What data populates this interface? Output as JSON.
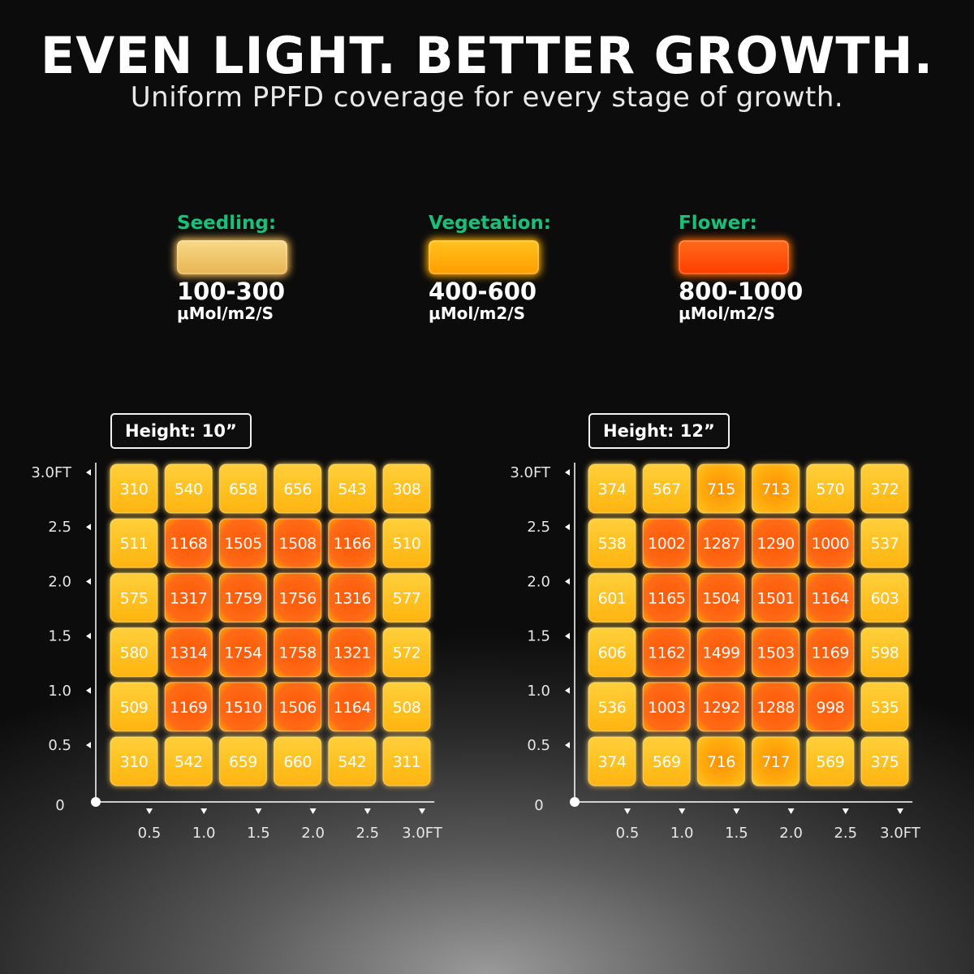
{
  "header": {
    "title": "EVEN LIGHT. BETTER GROWTH.",
    "subtitle": "Uniform PPFD coverage for every stage of growth."
  },
  "legend": [
    {
      "label": "Seedling:",
      "range": "100-300",
      "unit": "μMol/m2/S",
      "color_top": "#f7d98a",
      "color_bottom": "#e9b452",
      "glow": "#ffc65a"
    },
    {
      "label": "Vegetation:",
      "range": "400-600",
      "unit": "μMol/m2/S",
      "color_top": "#ffc21e",
      "color_bottom": "#ff9d00",
      "glow": "#ffb000"
    },
    {
      "label": "Flower:",
      "range": "800-1000",
      "unit": "μMol/m2/S",
      "color_top": "#ff6a1a",
      "color_bottom": "#ff3d00",
      "glow": "#ff6a00"
    }
  ],
  "colors": {
    "legend_label": "#19c07a",
    "cell_mid": "#ffc21e",
    "cell_high": "#ff5a10"
  },
  "chart_data": [
    {
      "type": "heatmap",
      "title": "Height: 10”",
      "xlabel": "",
      "ylabel": "",
      "x_ticks": [
        "0.5",
        "1.0",
        "1.5",
        "2.0",
        "2.5",
        "3.0FT"
      ],
      "y_ticks": [
        "3.0FT",
        "2.5",
        "2.0",
        "1.5",
        "1.0",
        "0.5"
      ],
      "origin_label": "0",
      "rows": [
        [
          310,
          540,
          658,
          656,
          543,
          308
        ],
        [
          511,
          1168,
          1505,
          1508,
          1166,
          510
        ],
        [
          575,
          1317,
          1759,
          1756,
          1316,
          577
        ],
        [
          580,
          1314,
          1754,
          1758,
          1321,
          572
        ],
        [
          509,
          1169,
          1510,
          1506,
          1164,
          508
        ],
        [
          310,
          542,
          659,
          660,
          542,
          311
        ]
      ]
    },
    {
      "type": "heatmap",
      "title": "Height: 12”",
      "xlabel": "",
      "ylabel": "",
      "x_ticks": [
        "0.5",
        "1.0",
        "1.5",
        "2.0",
        "2.5",
        "3.0FT"
      ],
      "y_ticks": [
        "3.0FT",
        "2.5",
        "2.0",
        "1.5",
        "1.0",
        "0.5"
      ],
      "origin_label": "0",
      "rows": [
        [
          374,
          567,
          715,
          713,
          570,
          372
        ],
        [
          538,
          1002,
          1287,
          1290,
          1000,
          537
        ],
        [
          601,
          1165,
          1504,
          1501,
          1164,
          603
        ],
        [
          606,
          1162,
          1499,
          1503,
          1169,
          598
        ],
        [
          536,
          1003,
          1292,
          1288,
          998,
          535
        ],
        [
          374,
          569,
          716,
          717,
          569,
          375
        ]
      ]
    }
  ]
}
